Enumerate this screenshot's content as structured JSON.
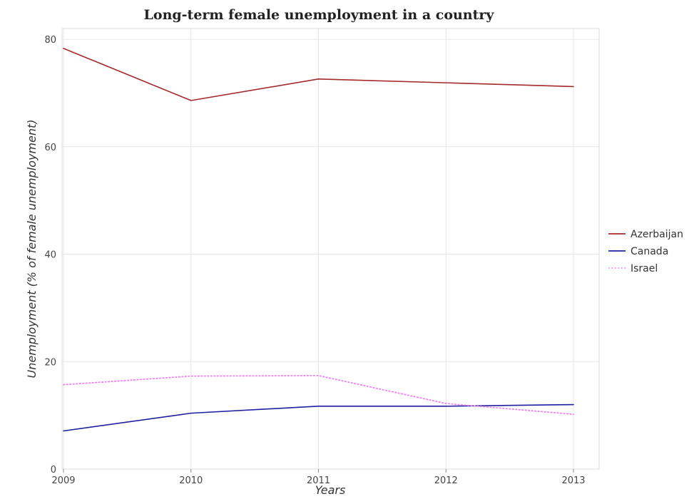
{
  "chart_data": {
    "type": "line",
    "title": "Long-term female unemployment in a country",
    "xlabel": "Years",
    "ylabel": "Unemployment (% of female unemployment)",
    "categories": [
      "2009",
      "2010",
      "2011",
      "2012",
      "2013"
    ],
    "ylim": [
      0,
      82
    ],
    "yticks": [
      0,
      20,
      40,
      60,
      80
    ],
    "grid": true,
    "legend_position": "right",
    "series": [
      {
        "name": "Azerbaijan",
        "color": "#a52a2a",
        "dash": "solid",
        "values": [
          78.3,
          68.6,
          72.6,
          71.9,
          71.2
        ]
      },
      {
        "name": "Canada",
        "color": "#1f1fa0",
        "dash": "solid",
        "values": [
          7.1,
          10.4,
          11.7,
          11.7,
          12.0
        ]
      },
      {
        "name": "Israel",
        "color": "#ee82ee",
        "dash": "dotted",
        "values": [
          15.7,
          17.3,
          17.4,
          12.2,
          10.2
        ]
      }
    ]
  }
}
